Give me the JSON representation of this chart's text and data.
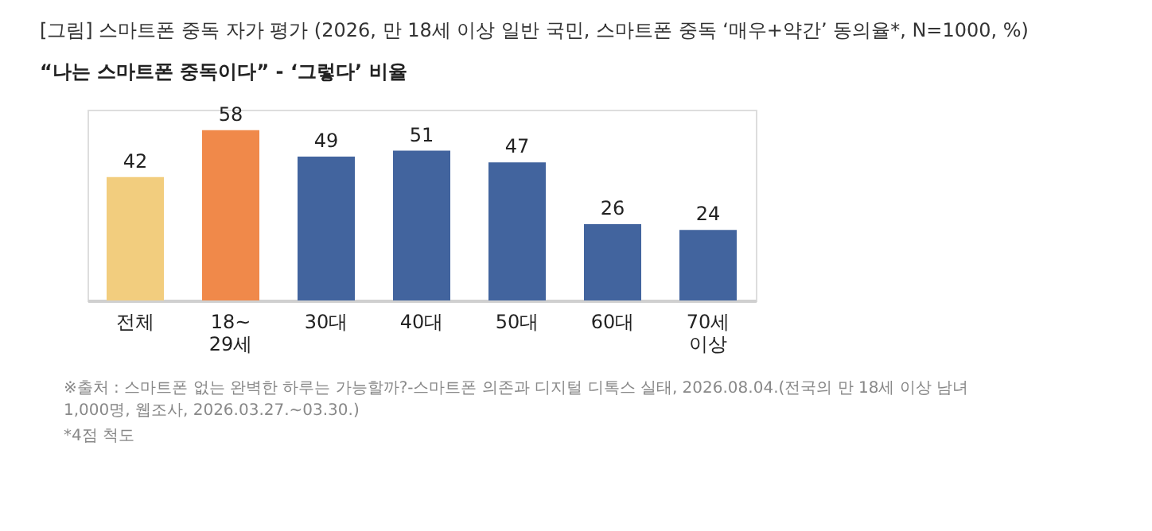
{
  "chart_data": {
    "type": "bar",
    "title": "[그림] 스마트폰 중독 자가 평가 (2026, 만 18세 이상 일반 국민, 스마트폰 중독 ‘매우+약간’ 동의율*, N=1000, %)",
    "subtitle": "“나는 스마트폰 중독이다” - ‘그렇다’ 비율",
    "categories": [
      "전체",
      "18~\n29세",
      "30대",
      "40대",
      "50대",
      "60대",
      "70세\n이상"
    ],
    "values": [
      42,
      58,
      49,
      51,
      47,
      26,
      24
    ],
    "colors": [
      "#f2cd7e",
      "#f0894a",
      "#42649e",
      "#42649e",
      "#42649e",
      "#42649e",
      "#42649e"
    ],
    "data_labels": true,
    "annotations": [
      "※출처 : 스마트폰 없는 완벽한 하루는 가능할까?-스마트폰 의존과 디지털 디톡스 실태, 2026.08.04.(전국의 만 18세 이상 남녀\n1,000명, 웹조사, 2026.03.27.~03.30.)",
      "*4점 척도"
    ]
  }
}
